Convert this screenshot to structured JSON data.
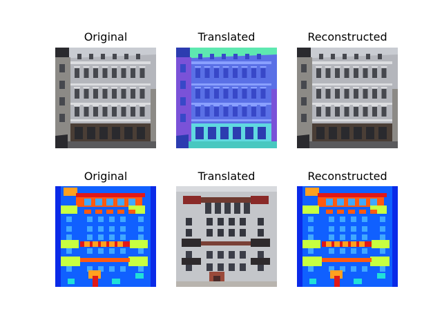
{
  "figure": {
    "rows": [
      {
        "panels": [
          {
            "title": "Original",
            "kind": "photo",
            "tint": "natural"
          },
          {
            "title": "Translated",
            "kind": "photo",
            "tint": "blue"
          },
          {
            "title": "Reconstructed",
            "kind": "photo",
            "tint": "natural"
          }
        ]
      },
      {
        "panels": [
          {
            "title": "Original",
            "kind": "label-map"
          },
          {
            "title": "Translated",
            "kind": "generated-photo"
          },
          {
            "title": "Reconstructed",
            "kind": "label-map"
          }
        ]
      }
    ]
  },
  "colors": {
    "label_background": "#0a2ae8",
    "label_wall": "#1060ff",
    "label_window": "#40a8ff",
    "label_sill": "#ff5a10",
    "label_balcony": "#c8ff40",
    "label_cornice": "#ffa020",
    "label_door": "#e01818",
    "label_deco": "#20e0d8",
    "photo_facade": "#a8a8ae",
    "photo_sky": "#b0b6c0",
    "translated_tint": "#4a68e0"
  }
}
